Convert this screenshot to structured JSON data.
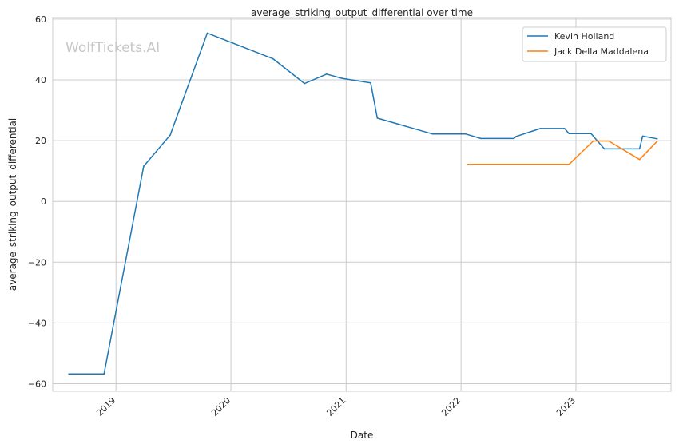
{
  "chart_data": {
    "type": "line",
    "title": "average_striking_output_differential over time",
    "xlabel": "Date",
    "ylabel": "average_striking_output_differential",
    "watermark": "WolfTickets.AI",
    "x_ticks": [
      "2019",
      "2020",
      "2021",
      "2022",
      "2023"
    ],
    "y_ticks": [
      "60",
      "40",
      "20",
      "0",
      "−20",
      "−40",
      "−60"
    ],
    "ylim": [
      -62.5,
      60.5
    ],
    "xlim": [
      "2018-06-14",
      "2023-10-30"
    ],
    "grid": true,
    "legend_position": "top-right",
    "series": [
      {
        "name": "Kevin Holland",
        "color": "#1f77b4",
        "points": [
          [
            "2018-08-04",
            -56.8
          ],
          [
            "2018-11-24",
            -56.8
          ],
          [
            "2019-03-30",
            11.6
          ],
          [
            "2019-06-22",
            21.8
          ],
          [
            "2019-10-18",
            55.4
          ],
          [
            "2020-05-13",
            47.0
          ],
          [
            "2020-08-22",
            38.8
          ],
          [
            "2020-10-31",
            41.9
          ],
          [
            "2020-12-19",
            40.5
          ],
          [
            "2021-03-20",
            39.0
          ],
          [
            "2021-04-10",
            27.4
          ],
          [
            "2021-10-02",
            22.2
          ],
          [
            "2022-01-15",
            22.2
          ],
          [
            "2022-03-05",
            20.7
          ],
          [
            "2022-06-18",
            20.7
          ],
          [
            "2022-06-25",
            21.4
          ],
          [
            "2022-09-10",
            24.0
          ],
          [
            "2022-11-26",
            24.0
          ],
          [
            "2022-12-10",
            22.3
          ],
          [
            "2023-02-18",
            22.3
          ],
          [
            "2023-04-01",
            17.3
          ],
          [
            "2023-07-22",
            17.3
          ],
          [
            "2023-08-01",
            21.5
          ],
          [
            "2023-09-16",
            20.6
          ]
        ]
      },
      {
        "name": "Jack Della Maddalena",
        "color": "#ff7f0e",
        "points": [
          [
            "2022-01-22",
            12.2
          ],
          [
            "2022-12-10",
            12.2
          ],
          [
            "2023-02-25",
            19.9
          ],
          [
            "2023-04-15",
            19.9
          ],
          [
            "2023-07-22",
            13.8
          ],
          [
            "2023-09-16",
            19.8
          ]
        ]
      }
    ]
  }
}
